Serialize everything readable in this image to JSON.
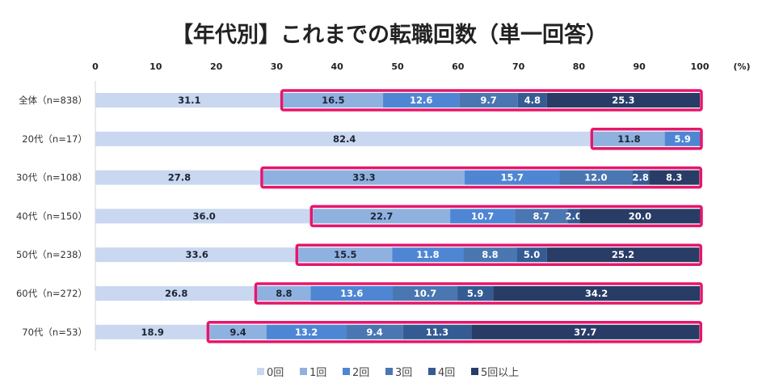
{
  "chart_data": {
    "type": "bar",
    "orientation": "horizontal",
    "stacked": true,
    "title": "【年代別】これまでの転職回数（単一回答）",
    "unit_label": "(%)",
    "xlim": [
      0,
      100
    ],
    "x_ticks": [
      "0",
      "10",
      "20",
      "30",
      "40",
      "50",
      "60",
      "70",
      "80",
      "90",
      "100"
    ],
    "grid": false,
    "legend_position": "bottom",
    "categories": [
      "全体（n=838）",
      "20代（n=17）",
      "30代（n=108）",
      "40代（n=150）",
      "50代（n=238）",
      "60代（n=272）",
      "70代（n=53）"
    ],
    "series": [
      {
        "name": "0回",
        "color": "#c9d8f0",
        "values": [
          31.1,
          82.4,
          27.8,
          36.0,
          33.6,
          26.8,
          18.9
        ]
      },
      {
        "name": "1回",
        "color": "#8fb1e0",
        "values": [
          16.5,
          11.8,
          33.3,
          22.7,
          15.5,
          8.8,
          9.4
        ]
      },
      {
        "name": "2回",
        "color": "#4f86d4",
        "values": [
          12.6,
          5.9,
          15.7,
          10.7,
          11.8,
          13.6,
          13.2
        ]
      },
      {
        "name": "3回",
        "color": "#4a76b2",
        "values": [
          9.7,
          0,
          12.0,
          8.7,
          8.8,
          10.7,
          9.4
        ]
      },
      {
        "name": "4回",
        "color": "#355b93",
        "values": [
          4.8,
          0,
          2.8,
          2.0,
          5.0,
          5.9,
          11.3
        ]
      },
      {
        "name": "5回以上",
        "color": "#283c66",
        "values": [
          25.3,
          0,
          8.3,
          20.0,
          25.2,
          34.2,
          37.7
        ]
      }
    ],
    "highlight": {
      "color": "#e5176b",
      "from_series": "1回"
    }
  }
}
